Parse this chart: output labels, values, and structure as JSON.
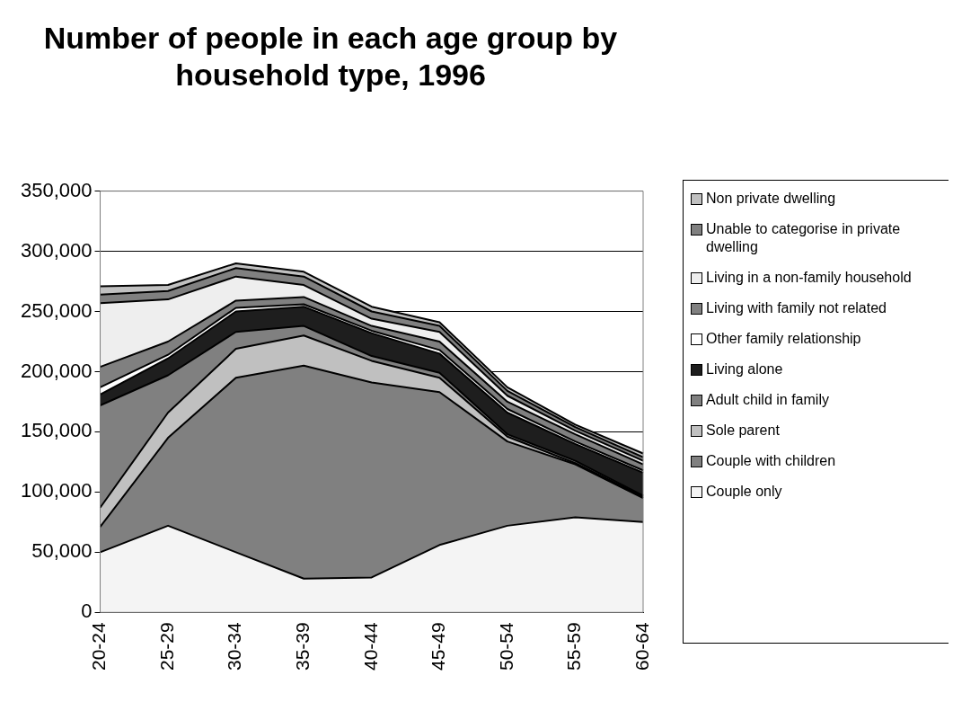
{
  "chart_data": {
    "type": "area",
    "stacked": true,
    "title": "Number of people in each age group by household type, 1996",
    "categories": [
      "20-24",
      "25-29",
      "30-34",
      "35-39",
      "40-44",
      "45-49",
      "50-54",
      "55-59",
      "60-64"
    ],
    "series": [
      {
        "name": "Couple only",
        "color": "#f4f4f4",
        "values": [
          50000,
          72000,
          50000,
          28000,
          29000,
          56000,
          72000,
          79000,
          75000
        ]
      },
      {
        "name": "Couple with children",
        "color": "#808080",
        "values": [
          21000,
          73000,
          145000,
          177000,
          162000,
          127000,
          70000,
          44000,
          20000
        ]
      },
      {
        "name": "Sole parent",
        "color": "#c0c0c0",
        "values": [
          16000,
          21000,
          24000,
          25000,
          18000,
          12000,
          4000,
          1000,
          1000
        ]
      },
      {
        "name": "Adult child in family",
        "color": "#808080",
        "values": [
          85000,
          31000,
          14000,
          8000,
          4000,
          4000,
          2000,
          2000,
          1000
        ]
      },
      {
        "name": "Living alone",
        "color": "#1e1e1e",
        "values": [
          9000,
          14000,
          17000,
          16000,
          19000,
          16000,
          18000,
          14000,
          19000
        ]
      },
      {
        "name": "Other family relationship",
        "color": "#ffffff",
        "values": [
          6000,
          3000,
          3000,
          2000,
          2000,
          3000,
          3000,
          2000,
          2000
        ]
      },
      {
        "name": "Living with family not related",
        "color": "#808080",
        "values": [
          17000,
          11000,
          6000,
          6000,
          4000,
          7000,
          6000,
          6000,
          5000
        ]
      },
      {
        "name": "Living in a non-family household",
        "color": "#eeeeee",
        "values": [
          53000,
          35000,
          20000,
          10000,
          6000,
          8000,
          5000,
          3000,
          3000
        ]
      },
      {
        "name": "Unable to categorise in private dwelling",
        "color": "#808080",
        "values": [
          7000,
          7000,
          7000,
          7000,
          6000,
          5000,
          4000,
          3000,
          3000
        ]
      },
      {
        "name": "Non private dwelling",
        "color": "#c0c0c0",
        "values": [
          7000,
          5000,
          4000,
          4000,
          4000,
          3000,
          3000,
          2000,
          3000
        ]
      }
    ],
    "ylim": [
      0,
      350000
    ],
    "yticks": [
      {
        "value": 0,
        "label": "0"
      },
      {
        "value": 50000,
        "label": "50,000"
      },
      {
        "value": 100000,
        "label": "100,000"
      },
      {
        "value": 150000,
        "label": "150,000"
      },
      {
        "value": 200000,
        "label": "200,000"
      },
      {
        "value": 250000,
        "label": "250,000"
      },
      {
        "value": 300000,
        "label": "300,000"
      },
      {
        "value": 350000,
        "label": "350,000"
      }
    ],
    "grid": "y",
    "legend": "right"
  }
}
